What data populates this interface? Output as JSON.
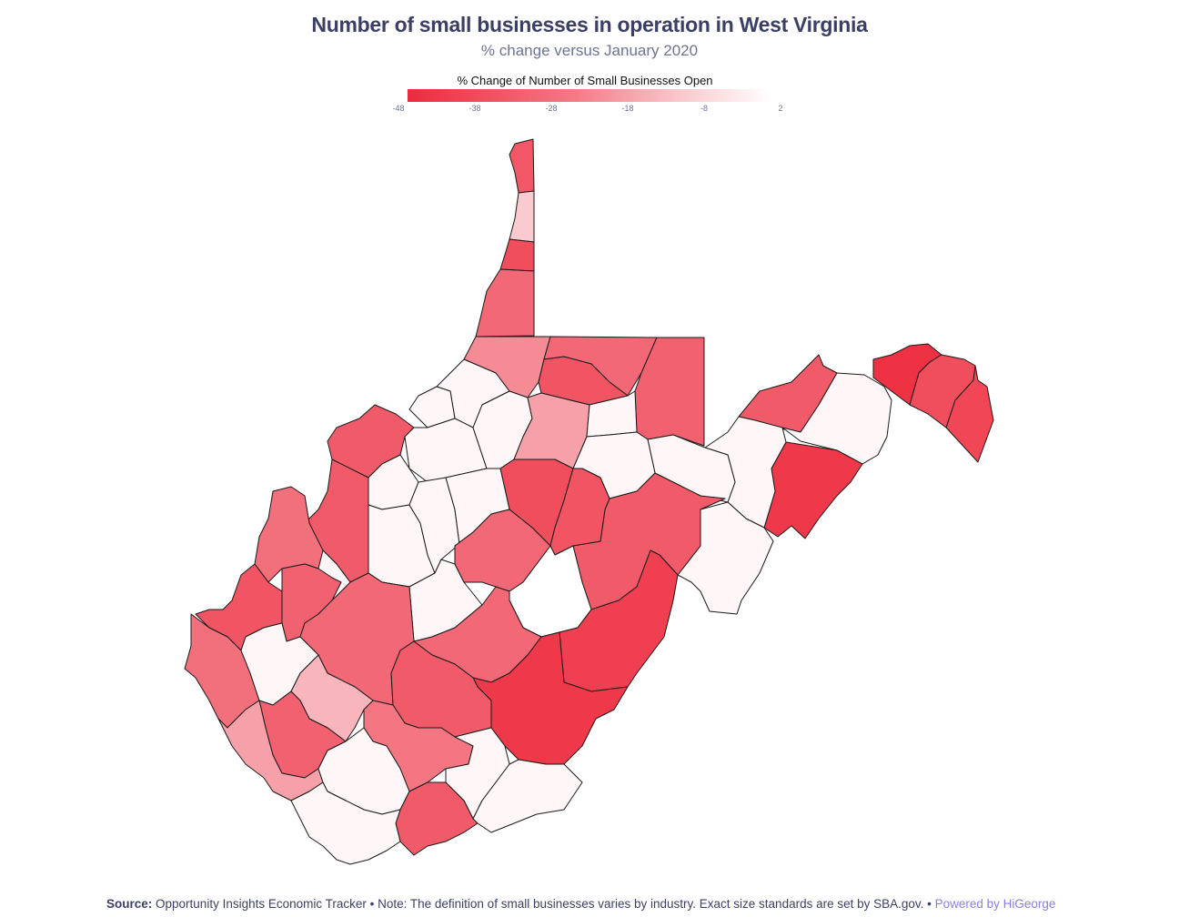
{
  "title": "Number of small businesses in operation in West Virginia",
  "subtitle": "% change versus January 2020",
  "legend": {
    "title": "% Change of Number of Small Businesses Open",
    "ticks": [
      "-48",
      "-38",
      "-28",
      "-18",
      "-8",
      "2"
    ],
    "min": -48,
    "max": 2,
    "colors": {
      "low": "#ee2a3d",
      "mid": "#f37884",
      "pale": "#f9c8cd",
      "high": "#ffffff"
    }
  },
  "footer": {
    "source_label": "Source:",
    "source_text": "Opportunity Insights Economic Tracker • Note: The definition of small businesses varies by industry. Exact size standards are set by SBA.gov. • ",
    "powered": "Powered by HiGeorge"
  },
  "regions": [
    {
      "id": "hancock",
      "value": -35
    },
    {
      "id": "brooke",
      "value": -10
    },
    {
      "id": "ohio",
      "value": -38
    },
    {
      "id": "marshall",
      "value": -30
    },
    {
      "id": "wetzel",
      "value": -22
    },
    {
      "id": "monongalia",
      "value": -30
    },
    {
      "id": "marion",
      "value": -36
    },
    {
      "id": "preston",
      "value": -32
    },
    {
      "id": "mineral",
      "value": -34
    },
    {
      "id": "hampshire",
      "value": 0
    },
    {
      "id": "morgan",
      "value": -46
    },
    {
      "id": "berkeley",
      "value": -38
    },
    {
      "id": "jefferson",
      "value": -40
    },
    {
      "id": "hardy",
      "value": -44
    },
    {
      "id": "grant",
      "value": 0
    },
    {
      "id": "tucker",
      "value": 0
    },
    {
      "id": "pendleton",
      "value": 0
    },
    {
      "id": "tyler",
      "value": 0
    },
    {
      "id": "pleasants",
      "value": 0
    },
    {
      "id": "wood",
      "value": -34
    },
    {
      "id": "ritchie",
      "value": 0
    },
    {
      "id": "doddridge",
      "value": 0
    },
    {
      "id": "harrison",
      "value": -18
    },
    {
      "id": "taylor",
      "value": 0
    },
    {
      "id": "barbour",
      "value": 0
    },
    {
      "id": "randolph",
      "value": -34
    },
    {
      "id": "wirt",
      "value": 0
    },
    {
      "id": "jackson",
      "value": -34
    },
    {
      "id": "calhoun",
      "value": 0
    },
    {
      "id": "gilmer",
      "value": 0
    },
    {
      "id": "lewis",
      "value": -38
    },
    {
      "id": "upshur",
      "value": -36
    },
    {
      "id": "mason",
      "value": -28
    },
    {
      "id": "roane",
      "value": 0
    },
    {
      "id": "braxton",
      "value": 0
    },
    {
      "id": "webster",
      "value": -30
    },
    {
      "id": "pocahontas",
      "value": -42
    },
    {
      "id": "cabell",
      "value": -36
    },
    {
      "id": "putnam",
      "value": -32
    },
    {
      "id": "kanawha",
      "value": -30
    },
    {
      "id": "clay",
      "value": 0
    },
    {
      "id": "nicholas",
      "value": -30
    },
    {
      "id": "greenbrier",
      "value": -44
    },
    {
      "id": "wayne",
      "value": -28
    },
    {
      "id": "lincoln",
      "value": 0
    },
    {
      "id": "boone",
      "value": -14
    },
    {
      "id": "fayette",
      "value": -34
    },
    {
      "id": "raleigh",
      "value": -26
    },
    {
      "id": "summers",
      "value": 0
    },
    {
      "id": "monroe",
      "value": 0
    },
    {
      "id": "logan",
      "value": -32
    },
    {
      "id": "mingo",
      "value": -18
    },
    {
      "id": "wyoming",
      "value": 0
    },
    {
      "id": "mercer",
      "value": -34
    },
    {
      "id": "mcdowell",
      "value": 0
    }
  ]
}
